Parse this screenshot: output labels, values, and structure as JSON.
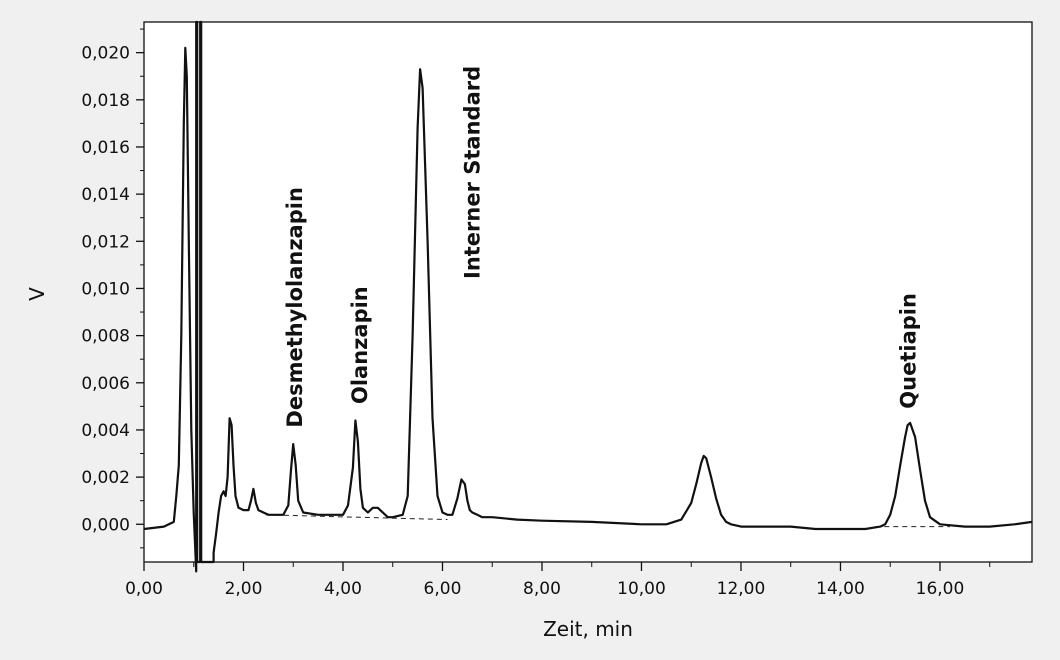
{
  "chart_data": {
    "type": "line",
    "xlabel": "Zeit, min",
    "ylabel": "V",
    "xlim": [
      0,
      17.85
    ],
    "ylim": [
      -0.0016,
      0.0213
    ],
    "x_ticks": [
      {
        "value": 0,
        "label": "0,00"
      },
      {
        "value": 2,
        "label": "2,00"
      },
      {
        "value": 4,
        "label": "4,00"
      },
      {
        "value": 6,
        "label": "6,00"
      },
      {
        "value": 8,
        "label": "8,00"
      },
      {
        "value": 10,
        "label": "10,00"
      },
      {
        "value": 12,
        "label": "12,00"
      },
      {
        "value": 14,
        "label": "14,00"
      },
      {
        "value": 16,
        "label": "16,00"
      }
    ],
    "y_ticks": [
      {
        "value": 0.0,
        "label": "0,000"
      },
      {
        "value": 0.002,
        "label": "0,002"
      },
      {
        "value": 0.004,
        "label": "0,004"
      },
      {
        "value": 0.006,
        "label": "0,006"
      },
      {
        "value": 0.008,
        "label": "0,008"
      },
      {
        "value": 0.01,
        "label": "0,010"
      },
      {
        "value": 0.012,
        "label": "0,012"
      },
      {
        "value": 0.014,
        "label": "0,014"
      },
      {
        "value": 0.016,
        "label": "0,016"
      },
      {
        "value": 0.018,
        "label": "0,018"
      },
      {
        "value": 0.02,
        "label": "0,020"
      }
    ],
    "grid": false,
    "series": [
      {
        "x": [
          0,
          0.4,
          0.6,
          0.65,
          0.7,
          0.75,
          0.8,
          0.83,
          0.86,
          0.9,
          0.95,
          1.0,
          1.03,
          1.05,
          1.05,
          1.07,
          1.07,
          1.13,
          1.13,
          1.15,
          1.15,
          1.4,
          1.4,
          1.45,
          1.5,
          1.55,
          1.6,
          1.64,
          1.68,
          1.72,
          1.76,
          1.8,
          1.84,
          1.9,
          2.0,
          2.1,
          2.15,
          2.2,
          2.25,
          2.3,
          2.4,
          2.5,
          2.6,
          2.8,
          2.9,
          2.95,
          3.0,
          3.05,
          3.1,
          3.2,
          3.5,
          4.0,
          4.1,
          4.2,
          4.25,
          4.3,
          4.35,
          4.4,
          4.5,
          4.6,
          4.7,
          4.8,
          4.9,
          5.0,
          5.2,
          5.3,
          5.4,
          5.5,
          5.55,
          5.6,
          5.7,
          5.8,
          5.9,
          6.0,
          6.1,
          6.2,
          6.3,
          6.38,
          6.45,
          6.5,
          6.55,
          6.6,
          6.7,
          6.8,
          7.0,
          7.5,
          8.0,
          9.0,
          10.0,
          10.5,
          10.8,
          11.0,
          11.1,
          11.2,
          11.25,
          11.3,
          11.4,
          11.5,
          11.6,
          11.7,
          11.8,
          12.0,
          12.5,
          13.0,
          13.5,
          14.0,
          14.5,
          14.8,
          14.9,
          15.0,
          15.1,
          15.2,
          15.3,
          15.35,
          15.4,
          15.5,
          15.6,
          15.7,
          15.8,
          16.0,
          16.5,
          17.0,
          17.5,
          17.85
        ],
        "y": [
          -0.0002,
          -0.0001,
          0.0001,
          0.0012,
          0.0025,
          0.008,
          0.017,
          0.0202,
          0.019,
          0.012,
          0.004,
          0.0005,
          -0.001,
          -0.002,
          0.0213,
          0.0213,
          -0.0016,
          -0.0016,
          0.0213,
          0.0213,
          -0.0016,
          -0.0016,
          -0.0012,
          -0.0004,
          0.0005,
          0.0012,
          0.0014,
          0.0012,
          0.002,
          0.0045,
          0.0042,
          0.0025,
          0.0012,
          0.0007,
          0.0006,
          0.0006,
          0.001,
          0.0015,
          0.0009,
          0.0006,
          0.0005,
          0.0004,
          0.0004,
          0.0004,
          0.0008,
          0.0022,
          0.0034,
          0.0025,
          0.001,
          0.0005,
          0.0004,
          0.0004,
          0.0008,
          0.0024,
          0.0044,
          0.0035,
          0.0015,
          0.0007,
          0.0005,
          0.0007,
          0.0007,
          0.0005,
          0.0003,
          0.0003,
          0.0004,
          0.0012,
          0.008,
          0.0168,
          0.0193,
          0.0185,
          0.012,
          0.0045,
          0.0012,
          0.0005,
          0.0004,
          0.0004,
          0.0011,
          0.0019,
          0.0017,
          0.001,
          0.0006,
          0.0005,
          0.0004,
          0.0003,
          0.0003,
          0.0002,
          0.00015,
          0.0001,
          0.0,
          0.0,
          0.0002,
          0.0009,
          0.0017,
          0.0026,
          0.0029,
          0.0028,
          0.002,
          0.0011,
          0.0004,
          0.0001,
          0.0,
          -0.0001,
          -0.0001,
          -0.0001,
          -0.0002,
          -0.0002,
          -0.0002,
          -0.0001,
          0.0,
          0.0004,
          0.0012,
          0.0025,
          0.0037,
          0.0042,
          0.0043,
          0.0037,
          0.0023,
          0.001,
          0.0003,
          0.0,
          -0.0001,
          -0.0001,
          0.0,
          0.0001
        ]
      }
    ],
    "baselines": [
      {
        "x": [
          2.45,
          6.1
        ],
        "y": [
          0.0004,
          0.0002
        ]
      },
      {
        "x": [
          14.7,
          16.2
        ],
        "y": [
          -0.0001,
          -0.0001
        ]
      }
    ],
    "annotations": [
      {
        "text": "Desmethylolanzapin",
        "x": 3.02,
        "y": 0.0041
      },
      {
        "text": "Olanzapin",
        "x": 4.32,
        "y": 0.0051
      },
      {
        "text": "Interner Standard",
        "x": 6.58,
        "y": 0.0104
      },
      {
        "text": "Quetiapin",
        "x": 15.35,
        "y": 0.0049
      }
    ]
  }
}
